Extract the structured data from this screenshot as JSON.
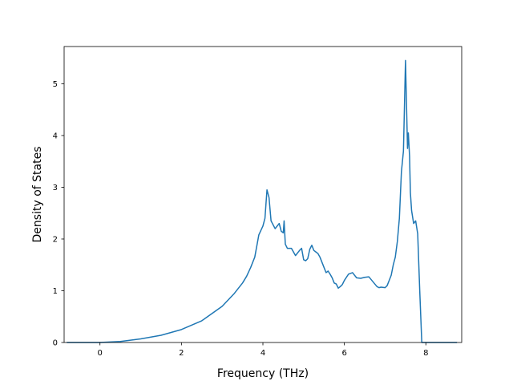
{
  "chart_data": {
    "type": "line",
    "title": "",
    "xlabel": "Frequency (THz)",
    "ylabel": "Density of States",
    "xlim": [
      -0.88,
      8.88
    ],
    "ylim": [
      0,
      5.72
    ],
    "xticks": [
      0,
      2,
      4,
      6,
      8
    ],
    "xtick_labels": [
      "0",
      "2",
      "4",
      "6",
      "8"
    ],
    "yticks": [
      0,
      1,
      2,
      3,
      4,
      5
    ],
    "ytick_labels": [
      "0",
      "1",
      "2",
      "3",
      "4",
      "5"
    ],
    "grid": false,
    "legend": "none",
    "series": [
      {
        "color": "#1f77b4",
        "x": [
          -0.8,
          0.0,
          0.5,
          1.0,
          1.5,
          2.0,
          2.5,
          3.0,
          3.3,
          3.5,
          3.6,
          3.7,
          3.8,
          3.9,
          4.0,
          4.05,
          4.1,
          4.15,
          4.2,
          4.3,
          4.4,
          4.45,
          4.5,
          4.52,
          4.55,
          4.6,
          4.7,
          4.8,
          4.9,
          4.95,
          5.0,
          5.05,
          5.1,
          5.15,
          5.2,
          5.25,
          5.3,
          5.35,
          5.4,
          5.5,
          5.55,
          5.6,
          5.65,
          5.7,
          5.75,
          5.8,
          5.85,
          5.9,
          5.95,
          6.0,
          6.1,
          6.2,
          6.3,
          6.4,
          6.5,
          6.6,
          6.8,
          6.85,
          6.9,
          7.0,
          7.05,
          7.1,
          7.15,
          7.2,
          7.25,
          7.3,
          7.35,
          7.4,
          7.45,
          7.5,
          7.55,
          7.57,
          7.6,
          7.62,
          7.65,
          7.7,
          7.75,
          7.8,
          7.85,
          7.9,
          7.93,
          7.95,
          8.0,
          8.3,
          8.75
        ],
        "y": [
          0,
          0,
          0.02,
          0.07,
          0.14,
          0.25,
          0.42,
          0.7,
          0.95,
          1.15,
          1.28,
          1.45,
          1.65,
          2.08,
          2.25,
          2.4,
          2.95,
          2.8,
          2.35,
          2.2,
          2.3,
          2.15,
          2.12,
          2.35,
          1.9,
          1.82,
          1.82,
          1.68,
          1.78,
          1.82,
          1.6,
          1.58,
          1.62,
          1.8,
          1.88,
          1.78,
          1.75,
          1.72,
          1.65,
          1.45,
          1.35,
          1.38,
          1.32,
          1.25,
          1.15,
          1.13,
          1.05,
          1.08,
          1.12,
          1.2,
          1.32,
          1.35,
          1.25,
          1.24,
          1.26,
          1.27,
          1.08,
          1.06,
          1.07,
          1.06,
          1.1,
          1.2,
          1.3,
          1.5,
          1.65,
          1.95,
          2.4,
          3.3,
          3.7,
          5.45,
          3.75,
          4.05,
          3.6,
          2.9,
          2.55,
          2.3,
          2.35,
          2.1,
          1.0,
          0,
          0,
          0,
          0,
          0,
          0
        ]
      }
    ]
  }
}
